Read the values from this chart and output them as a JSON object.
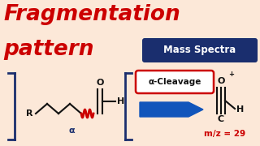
{
  "bg_color": "#fce8d8",
  "title_line1": "Fragmentation",
  "title_line2": "pattern",
  "title_color": "#cc0000",
  "title_fontsize": 19,
  "badge_text": "Mass Spectra",
  "badge_bg": "#1a2e6e",
  "badge_color": "white",
  "badge_fontsize": 8.5,
  "alpha_cleavage_text": "α-Cleavage",
  "alpha_cleavage_bg": "white",
  "alpha_cleavage_border": "#cc0000",
  "arrow_color": "#1155bb",
  "mz_text": "m/z = 29",
  "mz_color": "#cc0000",
  "mz_fontsize": 7.5,
  "bracket_color": "#1a2e6e",
  "molecule_color": "#111111",
  "alpha_label_color": "#1a2e6e",
  "zigzag_color": "#cc0000",
  "product_color": "#111111"
}
